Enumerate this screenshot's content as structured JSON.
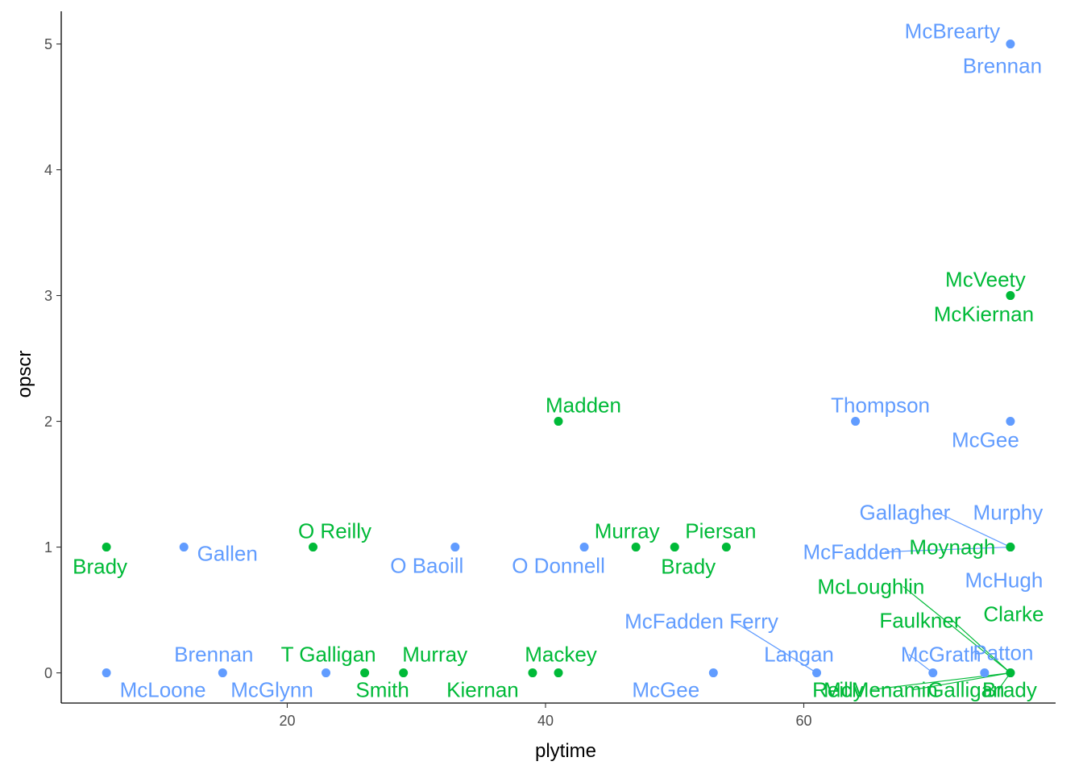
{
  "chart_data": {
    "type": "scatter",
    "xlabel": "plytime",
    "ylabel": "opscr",
    "xlim": [
      2.5,
      79.5
    ],
    "ylim": [
      -0.24,
      5.26
    ],
    "x_ticks": [
      20,
      40,
      60
    ],
    "y_ticks": [
      0,
      1,
      2,
      3,
      4,
      5
    ],
    "grid": false,
    "legend": "none",
    "colors": {
      "blue": "#619CFF",
      "green": "#00BA38",
      "axis": "#000000"
    },
    "series": [
      {
        "color": "blue",
        "points": [
          {
            "x": 76,
            "y": 5,
            "labels": [
              "McBrearty",
              "Brennan"
            ]
          },
          {
            "x": 64,
            "y": 2,
            "labels": [
              "Thompson"
            ]
          },
          {
            "x": 76,
            "y": 2,
            "labels": [
              "McGee"
            ]
          },
          {
            "x": 12,
            "y": 1,
            "labels": [
              "Gallen"
            ]
          },
          {
            "x": 33,
            "y": 1,
            "labels": [
              "O Baoill"
            ]
          },
          {
            "x": 43,
            "y": 1,
            "labels": [
              "O Donnell"
            ]
          },
          {
            "x": 76,
            "y": 1,
            "labels": [
              "Gallagher",
              "Murphy",
              "McFadden",
              "McHugh"
            ]
          },
          {
            "x": 6,
            "y": 0,
            "labels": [
              "McLoone"
            ]
          },
          {
            "x": 15,
            "y": 0,
            "labels": [
              "Brennan"
            ]
          },
          {
            "x": 23,
            "y": 0,
            "labels": [
              "McGlynn"
            ]
          },
          {
            "x": 53,
            "y": 0,
            "labels": [
              "McGee"
            ]
          },
          {
            "x": 61,
            "y": 0,
            "labels": [
              "McFadden Ferry",
              "Langan"
            ]
          },
          {
            "x": 70,
            "y": 0,
            "labels": [
              "McGrath"
            ]
          },
          {
            "x": 74,
            "y": 0,
            "labels": []
          },
          {
            "x": 76,
            "y": 0,
            "labels": [
              "Patton"
            ]
          }
        ]
      },
      {
        "color": "green",
        "points": [
          {
            "x": 76,
            "y": 3,
            "labels": [
              "McVeety",
              "McKiernan"
            ]
          },
          {
            "x": 41,
            "y": 2,
            "labels": [
              "Madden"
            ]
          },
          {
            "x": 6,
            "y": 1,
            "labels": [
              "Brady"
            ]
          },
          {
            "x": 22,
            "y": 1,
            "labels": [
              "O Reilly"
            ]
          },
          {
            "x": 47,
            "y": 1,
            "labels": [
              "Murray"
            ]
          },
          {
            "x": 50,
            "y": 1,
            "labels": [
              "Brady"
            ]
          },
          {
            "x": 54,
            "y": 1,
            "labels": [
              "Piersan"
            ]
          },
          {
            "x": 76,
            "y": 1,
            "labels": [
              "Moynagh"
            ]
          },
          {
            "x": 26,
            "y": 0,
            "labels": [
              "T Galligan",
              "Smith"
            ]
          },
          {
            "x": 29,
            "y": 0,
            "labels": [
              "Murray"
            ]
          },
          {
            "x": 39,
            "y": 0,
            "labels": [
              "Kiernan"
            ]
          },
          {
            "x": 41,
            "y": 0,
            "labels": [
              "Mackey"
            ]
          },
          {
            "x": 76,
            "y": 0,
            "labels": [
              "McLoughlin",
              "Faulkner",
              "Clarke",
              "Reilly",
              "McMenamin",
              "Galligan",
              "Brady"
            ]
          }
        ]
      }
    ]
  }
}
